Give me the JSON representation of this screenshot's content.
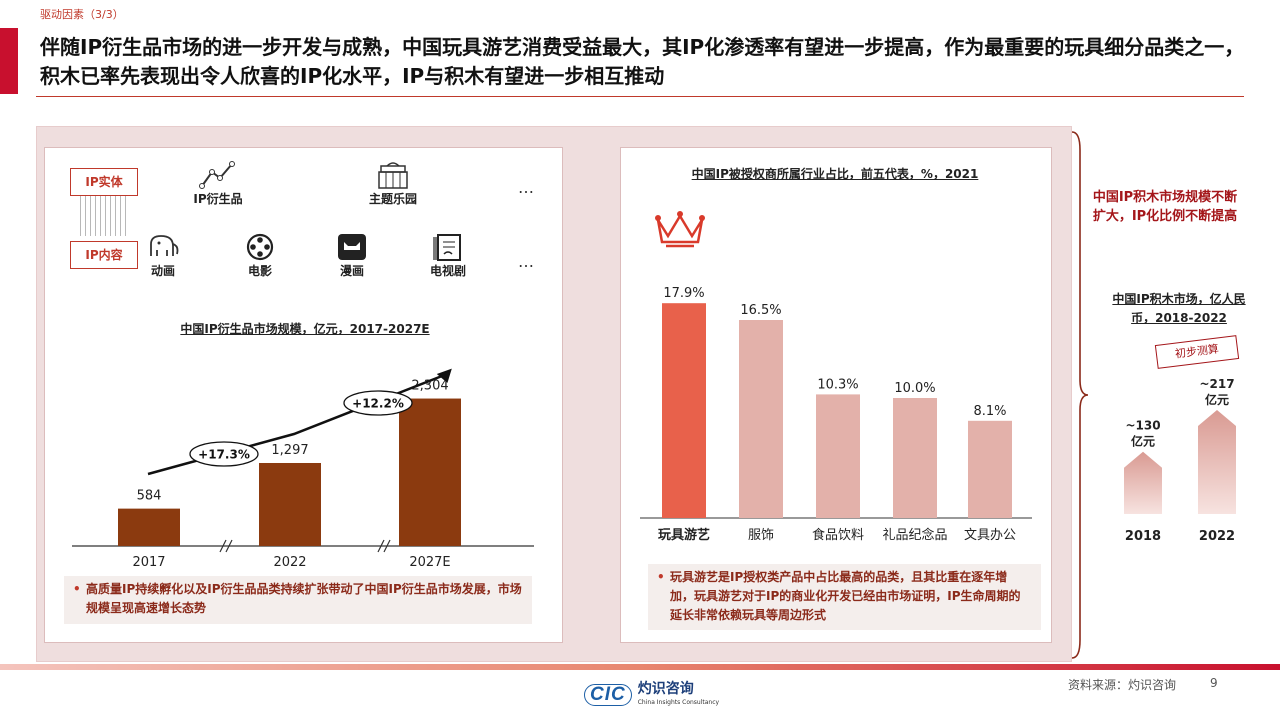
{
  "header": {
    "section_tag": "驱动因素（3/3）",
    "title": "伴随IP衍生品市场的进一步开发与成熟，中国玩具游艺消费受益最大，其IP化渗透率有望进一步提高，作为最重要的玩具细分品类之一，积木已率先表现出令人欣喜的IP化水平，IP与积木有望进一步相互推动"
  },
  "colors": {
    "accent_red": "#c8102e",
    "bar_brown": "#8b3a0f",
    "bar_pink": "#e3b1aa",
    "bar_highlight": "#e8614b"
  },
  "ip_diagram": {
    "entity_label": "IP实体",
    "content_label": "IP内容",
    "entity_items": [
      {
        "label": "IP衍生品",
        "icon": "trend-line-icon"
      },
      {
        "label": "主题乐园",
        "icon": "theme-park-icon"
      }
    ],
    "content_items": [
      {
        "label": "动画",
        "icon": "elephant-icon"
      },
      {
        "label": "电影",
        "icon": "film-reel-icon"
      },
      {
        "label": "漫画",
        "icon": "comic-cat-icon"
      },
      {
        "label": "电视剧",
        "icon": "tv-script-icon"
      }
    ],
    "ellipsis": "…"
  },
  "left_note": "高质量IP持续孵化以及IP衍生品品类持续扩张带动了中国IP衍生品市场发展，市场规模呈现高速增长态势",
  "right_note": "玩具游艺是IP授权类产品中占比最高的品类，且其比重在逐年增加，玩具游艺对于IP的商业化开发已经由市场证明，IP生命周期的延长非常依赖玩具等周边形式",
  "callout": "中国IP积木市场规模不断扩大，IP化比例不断提高",
  "stamp": "初步测算",
  "footer": {
    "source": "资料来源：灼识咨询",
    "page": "9",
    "logo_en": "China Insights Consultancy",
    "logo_cn": "灼识咨询",
    "logo_mark": "CIC"
  },
  "chart_data": [
    {
      "type": "bar",
      "title": "中国IP衍生品市场规模，亿元，2017-2027E",
      "categories": [
        "2017",
        "2022",
        "2027E"
      ],
      "values": [
        584,
        1297,
        2304
      ],
      "value_labels": [
        "584",
        "1,297",
        "2,304"
      ],
      "ylim": [
        0,
        2500
      ],
      "annotations": [
        "+17.3%",
        "+12.2%"
      ],
      "axis_breaks": true,
      "grid": false
    },
    {
      "type": "bar",
      "title": "中国IP被授权商所属行业占比，前五代表，%，2021",
      "categories": [
        "玩具游艺",
        "服饰",
        "食品饮料",
        "礼品纪念品",
        "文具办公"
      ],
      "values": [
        17.9,
        16.5,
        10.3,
        10.0,
        8.1
      ],
      "value_labels": [
        "17.9%",
        "16.5%",
        "10.3%",
        "10.0%",
        "8.1%"
      ],
      "ylim": [
        0,
        20
      ],
      "highlight": "玩具游艺",
      "grid": false
    },
    {
      "type": "bar",
      "title": "中国IP积木市场，亿人民币，2018-2022",
      "categories": [
        "2018",
        "2022"
      ],
      "values": [
        130,
        217
      ],
      "value_labels": [
        "~130\n亿元",
        "~217\n亿元"
      ],
      "grid": false
    }
  ]
}
